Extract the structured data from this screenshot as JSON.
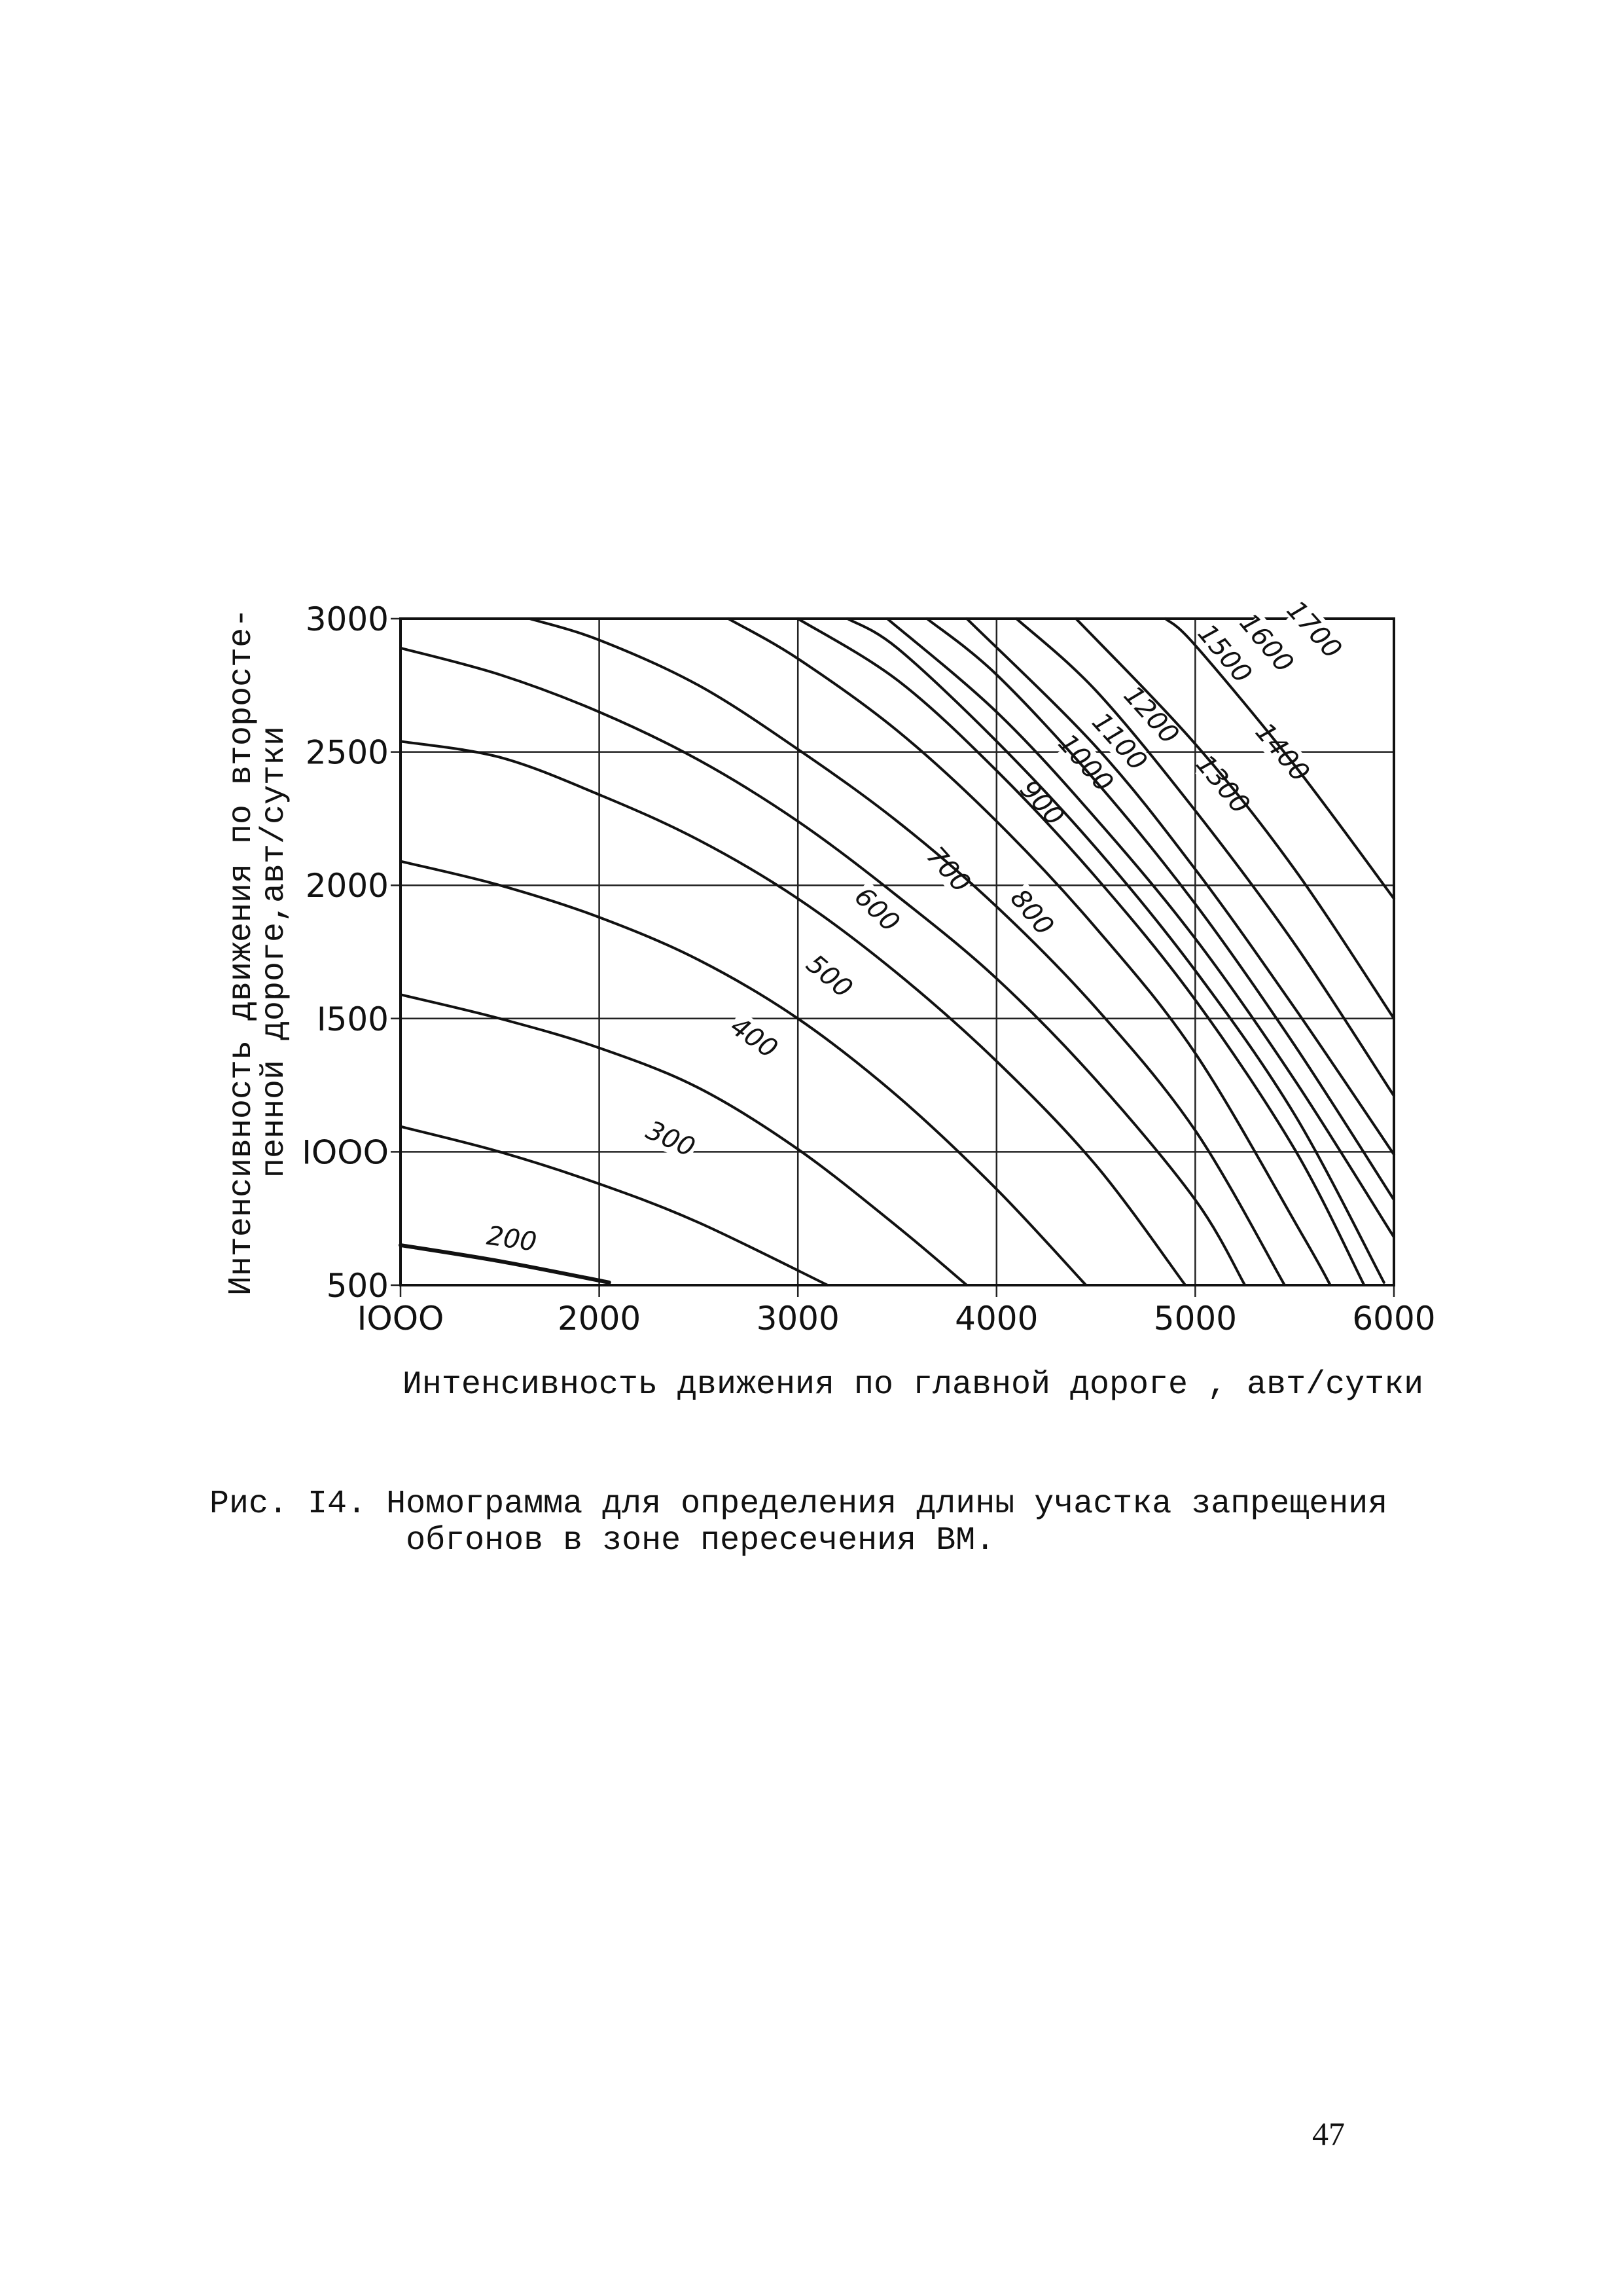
{
  "chart_data": {
    "type": "line",
    "xlabel": "Интенсивность движения по главной дороге , авт/сутки",
    "ylabel": [
      "Интенсивность движения по второсте-",
      "пенной дороге,авт/сутки"
    ],
    "xlim": [
      1000,
      6000
    ],
    "ylim": [
      500,
      3000
    ],
    "x_ticks": [
      1000,
      2000,
      3000,
      4000,
      5000,
      6000
    ],
    "y_ticks": [
      500,
      1000,
      1500,
      2000,
      2500,
      3000
    ],
    "x_tick_labels": [
      "IOOO",
      "2000",
      "3000",
      "4000",
      "5000",
      "6000"
    ],
    "y_tick_labels": [
      "500",
      "IOOO",
      "I500",
      "2000",
      "2500",
      "3000"
    ],
    "grid": true,
    "series": [
      {
        "name": "200",
        "points": [
          [
            1000,
            650
          ],
          [
            1500,
            590
          ],
          [
            2050,
            510
          ]
        ]
      },
      {
        "name": "300",
        "points": [
          [
            1000,
            1095
          ],
          [
            1500,
            1000
          ],
          [
            2000,
            880
          ],
          [
            2500,
            735
          ],
          [
            3150,
            500
          ]
        ]
      },
      {
        "name": "400",
        "points": [
          [
            1000,
            1590
          ],
          [
            1500,
            1500
          ],
          [
            2000,
            1390
          ],
          [
            2500,
            1240
          ],
          [
            3000,
            1010
          ],
          [
            3500,
            720
          ],
          [
            3850,
            500
          ]
        ]
      },
      {
        "name": "500",
        "points": [
          [
            1000,
            2090
          ],
          [
            1500,
            2000
          ],
          [
            2000,
            1880
          ],
          [
            2500,
            1720
          ],
          [
            3000,
            1500
          ],
          [
            3500,
            1210
          ],
          [
            4000,
            860
          ],
          [
            4450,
            500
          ]
        ]
      },
      {
        "name": "600",
        "points": [
          [
            1000,
            2540
          ],
          [
            1500,
            2480
          ],
          [
            2000,
            2340
          ],
          [
            2500,
            2170
          ],
          [
            3000,
            1950
          ],
          [
            3500,
            1670
          ],
          [
            4000,
            1340
          ],
          [
            4500,
            950
          ],
          [
            4950,
            500
          ]
        ]
      },
      {
        "name": "700",
        "points": [
          [
            1000,
            2890
          ],
          [
            1500,
            2790
          ],
          [
            2000,
            2650
          ],
          [
            2500,
            2470
          ],
          [
            3000,
            2240
          ],
          [
            3500,
            1960
          ],
          [
            4000,
            1650
          ],
          [
            4500,
            1270
          ],
          [
            5000,
            820
          ],
          [
            5250,
            500
          ]
        ]
      },
      {
        "name": "800",
        "points": [
          [
            1650,
            3000
          ],
          [
            2000,
            2920
          ],
          [
            2500,
            2750
          ],
          [
            3000,
            2510
          ],
          [
            3500,
            2240
          ],
          [
            4000,
            1920
          ],
          [
            4500,
            1540
          ],
          [
            5000,
            1080
          ],
          [
            5450,
            500
          ]
        ]
      },
      {
        "name": "900",
        "points": [
          [
            2650,
            3000
          ],
          [
            3000,
            2850
          ],
          [
            3500,
            2580
          ],
          [
            4000,
            2240
          ],
          [
            4500,
            1840
          ],
          [
            5000,
            1370
          ],
          [
            5530,
            700
          ],
          [
            5680,
            500
          ]
        ]
      },
      {
        "name": "1000",
        "points": [
          [
            3000,
            3000
          ],
          [
            3500,
            2770
          ],
          [
            4000,
            2430
          ],
          [
            4500,
            2030
          ],
          [
            5000,
            1570
          ],
          [
            5500,
            1010
          ],
          [
            5850,
            500
          ]
        ]
      },
      {
        "name": "1100",
        "points": [
          [
            3250,
            3000
          ],
          [
            3500,
            2890
          ],
          [
            4000,
            2540
          ],
          [
            4500,
            2140
          ],
          [
            5000,
            1680
          ],
          [
            5500,
            1140
          ],
          [
            5950,
            510
          ]
        ]
      },
      {
        "name": "1200",
        "points": [
          [
            3450,
            3000
          ],
          [
            4000,
            2650
          ],
          [
            4500,
            2250
          ],
          [
            5000,
            1800
          ],
          [
            5500,
            1270
          ],
          [
            6000,
            680
          ]
        ]
      },
      {
        "name": "1300",
        "points": [
          [
            3650,
            3000
          ],
          [
            4000,
            2790
          ],
          [
            4500,
            2390
          ],
          [
            5000,
            1930
          ],
          [
            5500,
            1400
          ],
          [
            6000,
            820
          ]
        ]
      },
      {
        "name": "1400",
        "points": [
          [
            3850,
            3000
          ],
          [
            4500,
            2520
          ],
          [
            5000,
            2060
          ],
          [
            5500,
            1540
          ],
          [
            6000,
            990
          ]
        ]
      },
      {
        "name": "1500",
        "points": [
          [
            4100,
            3000
          ],
          [
            4500,
            2730
          ],
          [
            5000,
            2280
          ],
          [
            5500,
            1780
          ],
          [
            6000,
            1210
          ]
        ]
      },
      {
        "name": "1600",
        "points": [
          [
            4400,
            3000
          ],
          [
            5000,
            2530
          ],
          [
            5500,
            2060
          ],
          [
            6000,
            1500
          ]
        ]
      },
      {
        "name": "1700",
        "points": [
          [
            4850,
            3000
          ],
          [
            5000,
            2900
          ],
          [
            5500,
            2450
          ],
          [
            6000,
            1950
          ]
        ]
      }
    ]
  },
  "caption": {
    "prefix": "Рис. I4.",
    "line1": "Номограмма для определения длины участка запрещения",
    "line2": "обгонов в зоне пересечения ВМ."
  },
  "page_number": "47"
}
